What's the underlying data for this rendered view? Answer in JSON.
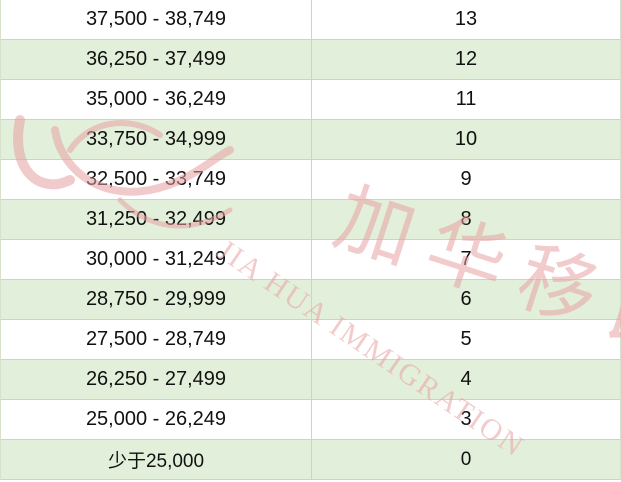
{
  "table": {
    "rows": [
      {
        "range": "37,500 - 38,749",
        "points": "13"
      },
      {
        "range": "36,250 - 37,499",
        "points": "12"
      },
      {
        "range": "35,000 - 36,249",
        "points": "11"
      },
      {
        "range": "33,750 - 34,999",
        "points": "10"
      },
      {
        "range": "32,500 - 33,749",
        "points": "9"
      },
      {
        "range": "31,250 - 32,499",
        "points": "8"
      },
      {
        "range": "30,000 - 31,249",
        "points": "7"
      },
      {
        "range": "28,750 - 29,999",
        "points": "6"
      },
      {
        "range": "27,500 - 28,749",
        "points": "5"
      },
      {
        "range": "26,250 - 27,499",
        "points": "4"
      },
      {
        "range": "25,000 - 26,249",
        "points": "3"
      },
      {
        "range": "少于25,000",
        "points": "0"
      }
    ]
  },
  "watermark": {
    "chinese": "加华移民",
    "english": "JIA HUA IMMIGRATION",
    "color": "#e8a3a3"
  },
  "colors": {
    "row_alt_bg": "#e2efda",
    "row_plain_bg": "#ffffff",
    "border": "#c9d7bd"
  }
}
